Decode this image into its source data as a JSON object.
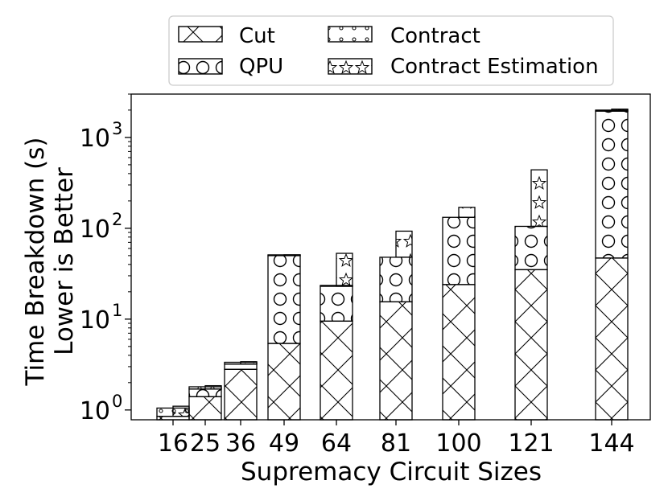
{
  "chart_data": {
    "type": "bar",
    "stacked": true,
    "y_scale": "log",
    "xlabel": "Supremacy Circuit Sizes",
    "ylabel_line1": "Time Breakdown (s)",
    "ylabel_line2": "Lower is Better",
    "ylim": [
      0.78,
      3000
    ],
    "grid": false,
    "legend_position": "top-center",
    "y_ticks": [
      {
        "value": 1,
        "base": "10",
        "exp": "0"
      },
      {
        "value": 10,
        "base": "10",
        "exp": "1"
      },
      {
        "value": 100,
        "base": "10",
        "exp": "2"
      },
      {
        "value": 1000,
        "base": "10",
        "exp": "3"
      }
    ],
    "categories": [
      "16",
      "25",
      "36",
      "49",
      "64",
      "81",
      "100",
      "121",
      "144"
    ],
    "cuts": [
      0.85,
      1.4,
      2.8,
      5.4,
      9.5,
      15.5,
      24,
      35,
      47
    ],
    "qpu_totals": [
      0.85,
      1.7,
      3.2,
      50,
      23,
      48,
      132,
      105,
      1950
    ],
    "contract_totals": [
      1.05,
      1.8,
      3.35,
      51,
      23.5,
      38,
      118,
      78,
      2000
    ],
    "estimation_totals": [
      1.1,
      1.85,
      3.4,
      51,
      53,
      93,
      170,
      440,
      2050
    ],
    "series": [
      {
        "name": "Cut",
        "pattern": "cross"
      },
      {
        "name": "QPU",
        "pattern": "circles"
      },
      {
        "name": "Contract",
        "pattern": "dots"
      },
      {
        "name": "Contract Estimation",
        "pattern": "stars"
      }
    ]
  }
}
